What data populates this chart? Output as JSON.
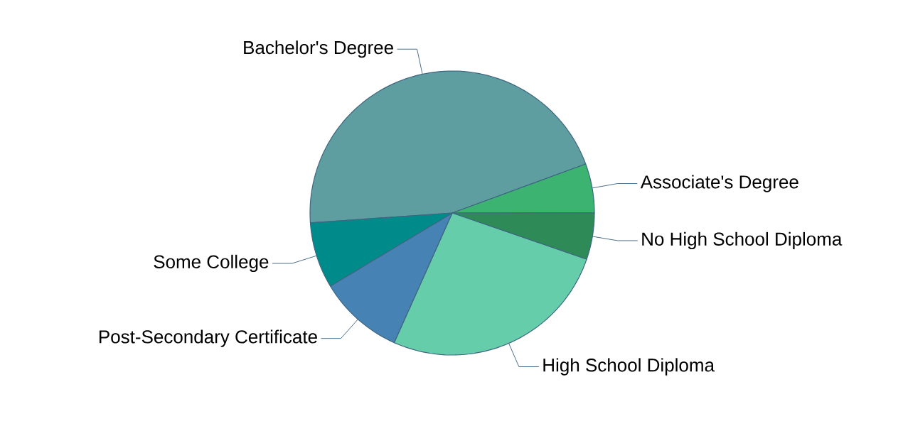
{
  "chart_data": {
    "type": "pie",
    "categories": [
      "Bachelor's Degree",
      "Associate's Degree",
      "No High School Diploma",
      "High School Diploma",
      "Post-Secondary Certificate",
      "Some College"
    ],
    "values": [
      45.5,
      5.6,
      5.3,
      26.4,
      9.7,
      7.5
    ],
    "colors": [
      "#5f9ea0",
      "#3cb371",
      "#2e8b57",
      "#66cdaa",
      "#4682b4",
      "#008b8b"
    ]
  }
}
